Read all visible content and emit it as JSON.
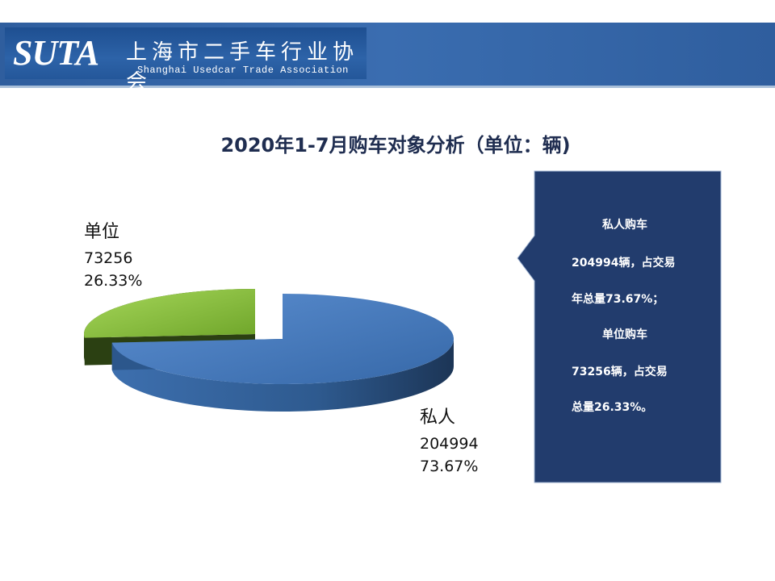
{
  "header": {
    "logo_mark": "SUTA",
    "org_name_cn": "上海市二手车行业协会",
    "org_name_en": "Shanghai Usedcar Trade Association"
  },
  "colors": {
    "header_band": "#2f5e9e",
    "callout_bg": "#223c6d",
    "private_slice": "#3f74b8",
    "unit_slice": "#8cc63f"
  },
  "chart_data": {
    "type": "pie",
    "title": "2020年1-7月购车对象分析（单位：辆)",
    "slices": [
      {
        "label": "私人",
        "value": 204994,
        "percent_label": "73.67%",
        "color": "#3f74b8"
      },
      {
        "label": "单位",
        "value": 73256,
        "percent_label": "26.33%",
        "color": "#8cc63f"
      }
    ]
  },
  "callout": {
    "lines": [
      "私人购车",
      "204994辆，占交易",
      "年总量73.67%；",
      "单位购车",
      "73256辆，占交易",
      "总量26.33%。"
    ]
  }
}
